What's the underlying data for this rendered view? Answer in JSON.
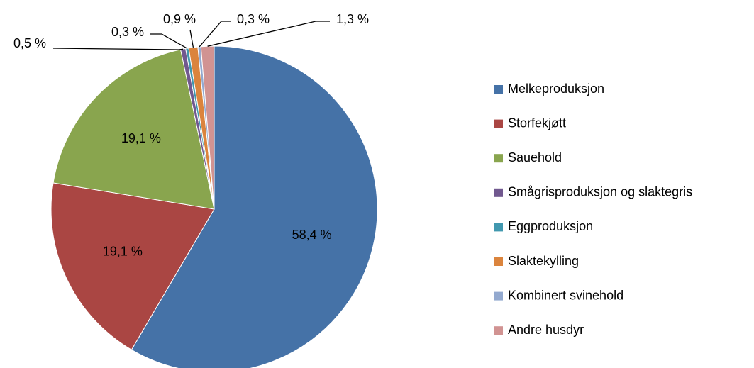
{
  "chart_data": {
    "type": "pie",
    "categories": [
      "Melkeproduksjon",
      "Storfekjøtt",
      "Sauehold",
      "Smågrisproduksjon og slaktegris",
      "Eggproduksjon",
      "Slaktekylling",
      "Kombinert svinehold",
      "Andre husdyr"
    ],
    "values": [
      58.4,
      19.1,
      19.1,
      0.5,
      0.3,
      0.9,
      0.3,
      1.3
    ],
    "value_labels": [
      "58,4 %",
      "19,1 %",
      "19,1 %",
      "0,5 %",
      "0,3 %",
      "0,9 %",
      "0,3 %",
      "1,3 %"
    ],
    "colors": [
      "#4572A7",
      "#AA4643",
      "#89A54E",
      "#71588F",
      "#4198AF",
      "#DB843D",
      "#93A9CF",
      "#D19392"
    ],
    "legend": "right"
  }
}
